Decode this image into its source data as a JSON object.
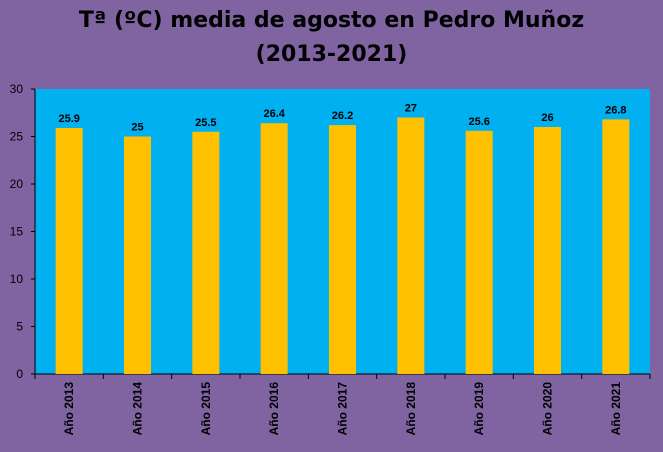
{
  "chart_data": {
    "type": "bar",
    "title": "Tª (ºC) media de agosto en Pedro Muñoz",
    "subtitle": "(2013-2021)",
    "categories": [
      "Año 2013",
      "Año 2014",
      "Año 2015",
      "Año 2016",
      "Año 2017",
      "Año 2018",
      "Año 2019",
      "Año 2020",
      "Año 2021"
    ],
    "values": [
      25.9,
      25,
      25.5,
      26.4,
      26.2,
      27,
      25.6,
      26,
      26.8
    ],
    "data_labels": [
      "25.9",
      "25",
      "25.5",
      "26.4",
      "26.2",
      "27",
      "25.6",
      "26",
      "26.8"
    ],
    "ylim": [
      0,
      30
    ],
    "yticks": [
      0,
      5,
      10,
      15,
      20,
      25,
      30
    ],
    "ytick_labels": [
      "0",
      "5",
      "10",
      "15",
      "20",
      "25",
      "30"
    ],
    "xlabel": "",
    "ylabel": "",
    "grid": false,
    "legend": "none",
    "colors": {
      "background": "#8064a2",
      "plot_area": "#00b0f0",
      "bar": "#ffc000",
      "text": "#000000"
    }
  }
}
